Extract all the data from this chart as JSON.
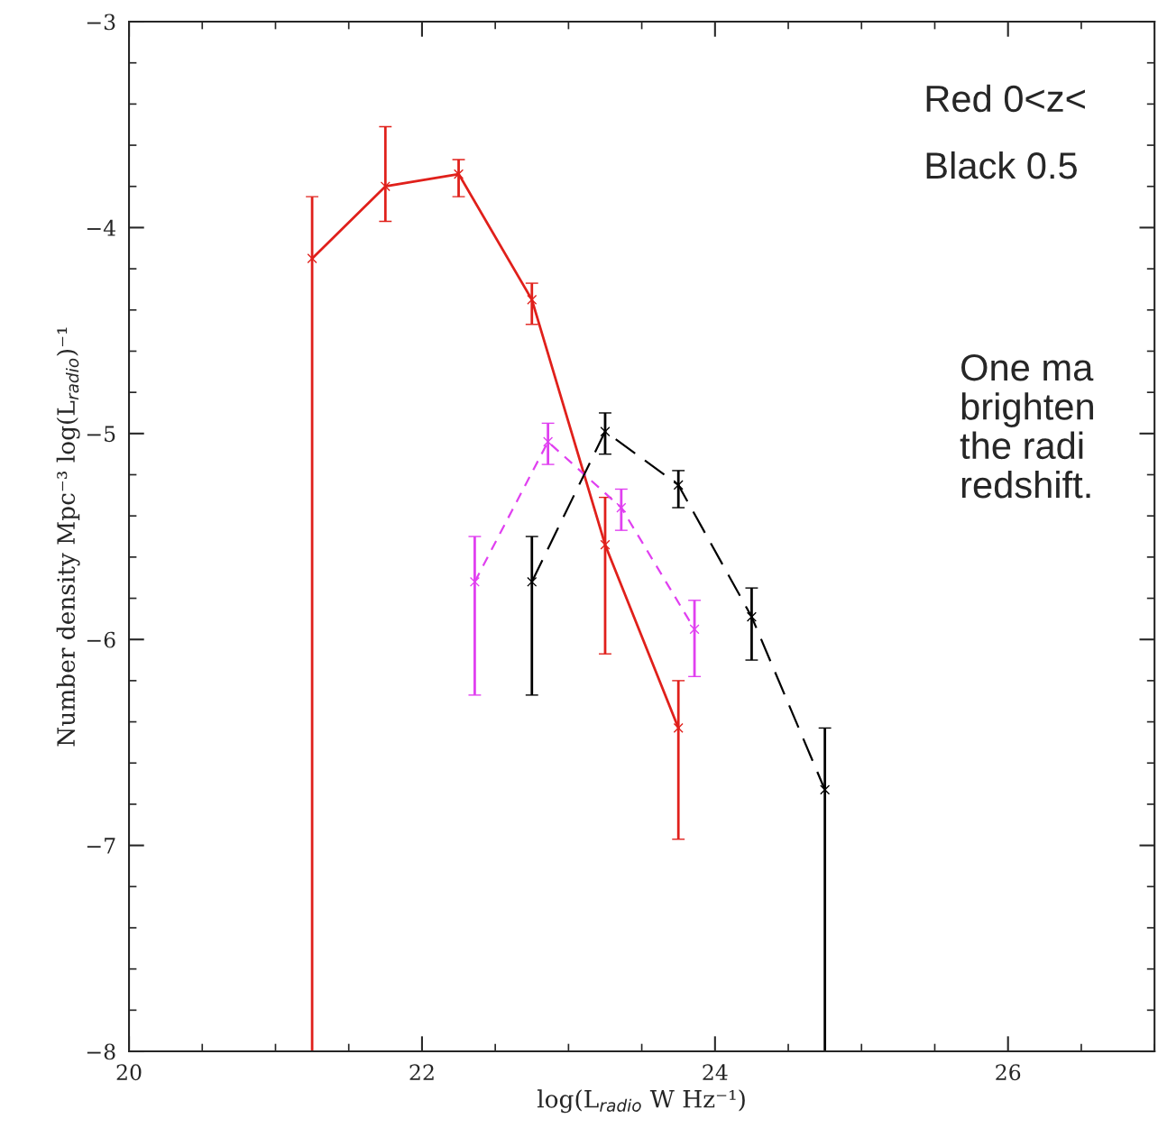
{
  "chart_data": {
    "type": "line",
    "xlabel": "log(L$_{radio}$ W Hz⁻¹)",
    "ylabel": "Number density Mpc⁻³ log(L$_{radio}$)⁻¹",
    "xlim": [
      20,
      27
    ],
    "ylim": [
      -8,
      -3
    ],
    "xticks": [
      20,
      22,
      24,
      26
    ],
    "yticks": [
      -8,
      -7,
      -6,
      -5,
      -4,
      -3
    ],
    "grid": false,
    "marker": "cross",
    "series": [
      {
        "color": "#e0201b",
        "line_style": "solid",
        "x": [
          21.25,
          21.75,
          22.25,
          22.75,
          23.25,
          23.75
        ],
        "values": [
          -4.15,
          -3.8,
          -3.74,
          -4.35,
          -5.54,
          -6.43
        ],
        "errors": [
          [
            -8,
            -3.85
          ],
          [
            -3.97,
            -3.51
          ],
          [
            -3.85,
            -3.67
          ],
          [
            -4.47,
            -4.27
          ],
          [
            -6.07,
            -5.31
          ],
          [
            -6.97,
            -6.2
          ]
        ]
      },
      {
        "color": "#e040f0",
        "line_style": "dashed",
        "x": [
          22.36,
          22.86,
          23.36,
          23.86
        ],
        "values": [
          -5.72,
          -5.04,
          -5.36,
          -5.95
        ],
        "errors": [
          [
            -6.27,
            -5.5
          ],
          [
            -5.15,
            -4.95
          ],
          [
            -5.47,
            -5.27
          ],
          [
            -6.18,
            -5.81
          ]
        ]
      },
      {
        "color": "#000000",
        "line_style": "longdash",
        "x": [
          22.75,
          23.25,
          23.75,
          24.25,
          24.75
        ],
        "values": [
          -5.72,
          -4.99,
          -5.25,
          -5.89,
          -6.73
        ],
        "errors": [
          [
            -6.27,
            -5.5
          ],
          [
            -5.1,
            -4.9
          ],
          [
            -5.36,
            -5.18
          ],
          [
            -6.1,
            -5.75
          ],
          [
            -8,
            -6.43
          ]
        ]
      }
    ],
    "annotations": [
      "Red 0<z<",
      "Black 0.5",
      "One ma\nbrighten\nthe radi\nredshift."
    ]
  }
}
